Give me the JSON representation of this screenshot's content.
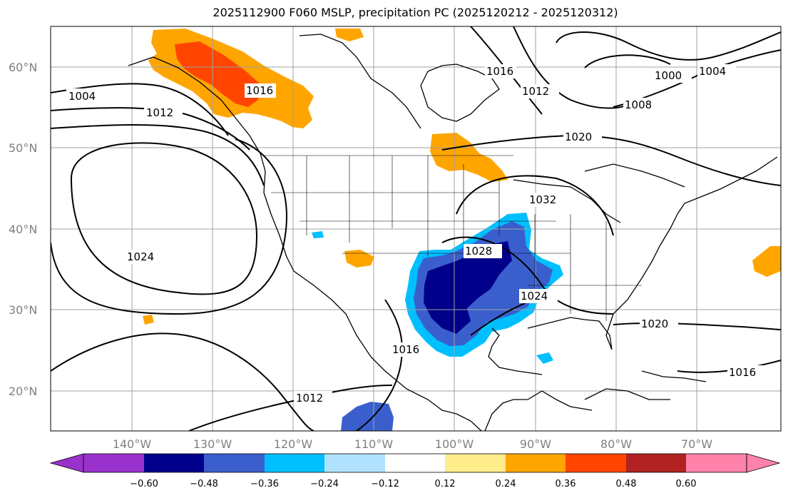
{
  "title": "2025112900 F060 MSLP, precipitation PC (2025120212 - 2025120312)",
  "colors": {
    "contour": "#000000",
    "grid": "#a0a0a0",
    "axis_label": "#808080",
    "pc_orange": "#ffa500",
    "pc_red": "#ff4500",
    "pc_blue": "#3a5fcd",
    "pc_navy": "#00008b",
    "pc_skyblue": "#00bfff"
  },
  "lat_labels": [
    "60°N",
    "50°N",
    "40°N",
    "30°N",
    "20°N"
  ],
  "lon_labels": [
    "140°W",
    "130°W",
    "120°W",
    "110°W",
    "100°W",
    "90°W",
    "80°W",
    "70°W"
  ],
  "contour_labels": [
    "1004",
    "1012",
    "1024",
    "1012",
    "1016",
    "1016",
    "1012",
    "1000",
    "1004",
    "1008",
    "1020",
    "1028",
    "1024",
    "1020",
    "1016",
    "1016",
    "1032"
  ],
  "colorbar": {
    "ticks": [
      "−0.60",
      "−0.48",
      "−0.36",
      "−0.24",
      "−0.12",
      "0.12",
      "0.24",
      "0.36",
      "0.48",
      "0.60"
    ],
    "colors": [
      "#9932cc",
      "#00008b",
      "#3a5fcd",
      "#00bfff",
      "#b0e2ff",
      "#ffffff",
      "#ffec8b",
      "#ffa500",
      "#ff4500",
      "#b22222",
      "#ff82ab"
    ]
  }
}
